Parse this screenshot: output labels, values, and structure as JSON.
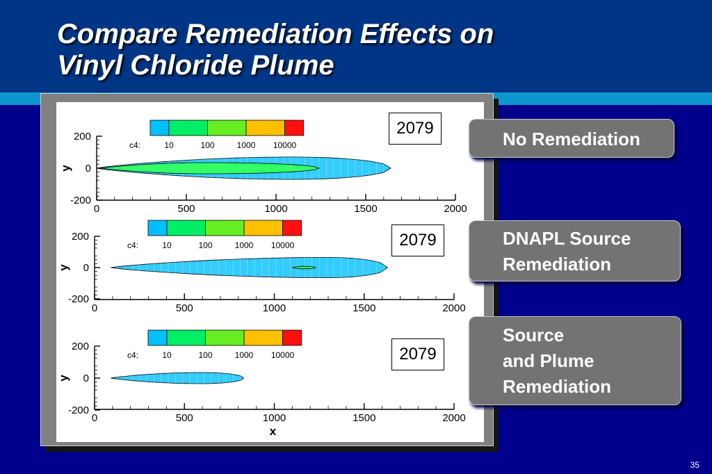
{
  "title": {
    "line1": "Compare Remediation Effects on",
    "line2": "Vinyl Chloride Plume"
  },
  "labels": [
    "No Remediation",
    "DNAPL Source\nRemediation",
    "Source\nand Plume\nRemediation"
  ],
  "slide_number": "35",
  "colors": {
    "background": "#00008c",
    "title_band": "#003585",
    "stripe": "#0e96cf",
    "label_box": "#737373",
    "plume_outer": "#33ccff",
    "plume_inner": "#33ff66"
  },
  "chart_data": [
    {
      "type": "contour",
      "year": "2079",
      "ylabel": "y",
      "xlabel": "",
      "xlim": [
        0,
        2000
      ],
      "ylim": [
        -200,
        200
      ],
      "x_ticks": [
        "0",
        "500",
        "1000",
        "1500",
        "2000"
      ],
      "y_ticks": [
        "200",
        "0",
        "-200"
      ],
      "legend": {
        "variable": "c4:",
        "levels": [
          "10",
          "100",
          "1000",
          "10000"
        ],
        "colors": [
          "#00c0ff",
          "#00ee66",
          "#66ee22",
          "#ffc000",
          "#ff1010"
        ]
      },
      "contours": [
        {
          "level": "10",
          "x_start": 0,
          "x_end": 1640,
          "max_halfwidth": 70,
          "peak_x": 1100
        },
        {
          "level": "100",
          "x_start": 30,
          "x_end": 1240,
          "max_halfwidth": 35,
          "peak_x": 600
        }
      ]
    },
    {
      "type": "contour",
      "year": "2079",
      "ylabel": "y",
      "xlabel": "",
      "xlim": [
        0,
        2000
      ],
      "ylim": [
        -200,
        200
      ],
      "x_ticks": [
        "0",
        "500",
        "1000",
        "1500",
        "2000"
      ],
      "y_ticks": [
        "200",
        "0",
        "-200"
      ],
      "legend": {
        "variable": "c4:",
        "levels": [
          "10",
          "100",
          "1000",
          "10000"
        ],
        "colors": [
          "#00c0ff",
          "#00ee66",
          "#66ee22",
          "#ffc000",
          "#ff1010"
        ]
      },
      "contours": [
        {
          "level": "10",
          "x_start": 90,
          "x_end": 1630,
          "max_halfwidth": 65,
          "peak_x": 1300
        },
        {
          "level": "100",
          "x_start": 1100,
          "x_end": 1230,
          "max_halfwidth": 8,
          "peak_x": 1165
        }
      ]
    },
    {
      "type": "contour",
      "year": "2079",
      "ylabel": "y",
      "xlabel": "x",
      "xlim": [
        0,
        2000
      ],
      "ylim": [
        -200,
        200
      ],
      "x_ticks": [
        "0",
        "500",
        "1000",
        "1500",
        "2000"
      ],
      "y_ticks": [
        "200",
        "0",
        "-200"
      ],
      "legend": {
        "variable": "c4:",
        "levels": [
          "10",
          "100",
          "1000",
          "10000"
        ],
        "colors": [
          "#00c0ff",
          "#00ee66",
          "#66ee22",
          "#ffc000",
          "#ff1010"
        ]
      },
      "contours": [
        {
          "level": "10",
          "x_start": 90,
          "x_end": 830,
          "max_halfwidth": 35,
          "peak_x": 600
        }
      ]
    }
  ]
}
